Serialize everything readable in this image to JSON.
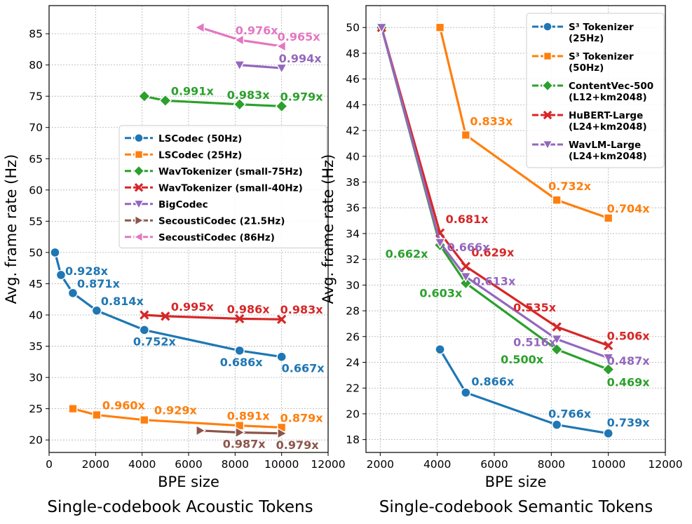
{
  "chart_data": [
    {
      "type": "line",
      "caption": "Single-codebook Acoustic Tokens",
      "xlabel": "BPE size",
      "ylabel": "Avg. frame rate (Hz)",
      "xlim": [
        0,
        12000
      ],
      "ylim": [
        18,
        89.5
      ],
      "xticks": [
        0,
        2000,
        4000,
        6000,
        8000,
        10000,
        12000
      ],
      "xtick_labels": [
        "0",
        "2000",
        "4000",
        "6000",
        "8000",
        "10000",
        "12000"
      ],
      "yticks": [
        20,
        25,
        30,
        35,
        40,
        45,
        50,
        55,
        60,
        65,
        70,
        75,
        80,
        85
      ],
      "ytick_labels": [
        "20",
        "25",
        "30",
        "35",
        "40",
        "45",
        "50",
        "55",
        "60",
        "65",
        "70",
        "75",
        "80",
        "85"
      ],
      "grid": true,
      "legend_position": "center-right",
      "series": [
        {
          "name": "LSCodec (50Hz)",
          "color": "#1f77b4",
          "marker": "circle",
          "x": [
            256,
            512,
            1024,
            2048,
            4096,
            8192,
            10000
          ],
          "y": [
            50.0,
            46.4,
            43.5,
            40.7,
            37.6,
            34.3,
            33.3
          ],
          "point_labels": [
            "",
            "0.928x",
            "0.871x",
            "0.814x",
            "0.752x",
            "0.686x",
            "0.667x"
          ]
        },
        {
          "name": "LSCodec (25Hz)",
          "color": "#ff7f0e",
          "marker": "square",
          "x": [
            1024,
            2048,
            4096,
            8192,
            10000
          ],
          "y": [
            25.0,
            24.0,
            23.2,
            22.3,
            22.0
          ],
          "point_labels": [
            "",
            "0.960x",
            "0.929x",
            "0.891x",
            "0.879x"
          ]
        },
        {
          "name": "WavTokenizer (small-75Hz)",
          "color": "#2ca02c",
          "marker": "diamond",
          "x": [
            4096,
            5000,
            8192,
            10000
          ],
          "y": [
            75.0,
            74.3,
            73.7,
            73.4
          ],
          "point_labels": [
            "",
            "0.991x",
            "0.983x",
            "0.979x"
          ]
        },
        {
          "name": "WavTokenizer (small-40Hz)",
          "color": "#d62728",
          "marker": "x",
          "x": [
            4096,
            5000,
            8192,
            10000
          ],
          "y": [
            40.0,
            39.8,
            39.4,
            39.3
          ],
          "point_labels": [
            "",
            "0.995x",
            "0.986x",
            "0.983x"
          ]
        },
        {
          "name": "BigCodec",
          "color": "#9467bd",
          "marker": "triangle-down",
          "x": [
            8192,
            10000
          ],
          "y": [
            80.0,
            79.5
          ],
          "point_labels": [
            "",
            "0.994x"
          ]
        },
        {
          "name": "SecoustiCodec (21.5Hz)",
          "color": "#8c564b",
          "marker": "triangle-right",
          "x": [
            6500,
            8192,
            10000
          ],
          "y": [
            21.5,
            21.2,
            21.05
          ],
          "point_labels": [
            "",
            "0.987x",
            "0.979x"
          ]
        },
        {
          "name": "SecoustiCodec (86Hz)",
          "color": "#e377c2",
          "marker": "triangle-left",
          "x": [
            6500,
            8192,
            10000
          ],
          "y": [
            86.0,
            84.0,
            83.0
          ],
          "point_labels": [
            "",
            "0.976x",
            "0.965x"
          ]
        }
      ]
    },
    {
      "type": "line",
      "caption": "Single-codebook Semantic Tokens",
      "xlabel": "BPE size",
      "ylabel": "Avg. frame rate (Hz)",
      "xlim": [
        1500,
        12000
      ],
      "ylim": [
        17,
        51.7
      ],
      "xticks": [
        2000,
        4000,
        6000,
        8000,
        10000,
        12000
      ],
      "xtick_labels": [
        "2000",
        "4000",
        "6000",
        "8000",
        "10000",
        "12000"
      ],
      "yticks": [
        18,
        20,
        22,
        24,
        26,
        28,
        30,
        32,
        34,
        36,
        38,
        40,
        42,
        44,
        46,
        48,
        50
      ],
      "ytick_labels": [
        "18",
        "20",
        "22",
        "24",
        "26",
        "28",
        "30",
        "32",
        "34",
        "36",
        "38",
        "40",
        "42",
        "44",
        "46",
        "48",
        "50"
      ],
      "grid": true,
      "legend_position": "top-right",
      "series": [
        {
          "name": "S³ Tokenizer",
          "name_sub": "(25Hz)",
          "color": "#1f77b4",
          "marker": "circle",
          "x": [
            4096,
            5000,
            8192,
            10000
          ],
          "y": [
            25.0,
            21.65,
            19.15,
            18.48
          ],
          "point_labels": [
            "",
            "0.866x",
            "0.766x",
            "0.739x"
          ]
        },
        {
          "name": "S³ Tokenizer",
          "name_sub": "(50Hz)",
          "color": "#ff7f0e",
          "marker": "square",
          "x": [
            4096,
            5000,
            8192,
            10000
          ],
          "y": [
            50.0,
            41.65,
            36.6,
            35.2
          ],
          "point_labels": [
            "",
            "0.833x",
            "0.732x",
            "0.704x"
          ]
        },
        {
          "name": "ContentVec-500",
          "name_sub": "(L12+km2048)",
          "color": "#2ca02c",
          "marker": "diamond",
          "x": [
            2048,
            4096,
            5000,
            8192,
            10000
          ],
          "y": [
            50.0,
            33.1,
            30.15,
            25.0,
            23.45
          ],
          "point_labels": [
            "",
            "0.662x",
            "0.603x",
            "0.500x",
            "0.469x"
          ]
        },
        {
          "name": "HuBERT-Large",
          "name_sub": "(L24+km2048)",
          "color": "#d62728",
          "marker": "x",
          "x": [
            2048,
            4096,
            5000,
            8192,
            10000
          ],
          "y": [
            50.0,
            34.05,
            31.45,
            26.75,
            25.3
          ],
          "point_labels": [
            "",
            "0.681x",
            "0.629x",
            "0.535x",
            "0.506x"
          ]
        },
        {
          "name": "WavLM-Large",
          "name_sub": "(L24+km2048)",
          "color": "#9467bd",
          "marker": "triangle-down",
          "x": [
            2048,
            4096,
            5000,
            8192,
            10000
          ],
          "y": [
            50.0,
            33.3,
            30.65,
            25.8,
            24.35
          ],
          "point_labels": [
            "",
            "0.666x",
            "0.613x",
            "0.516x",
            "0.487x"
          ]
        }
      ]
    }
  ]
}
